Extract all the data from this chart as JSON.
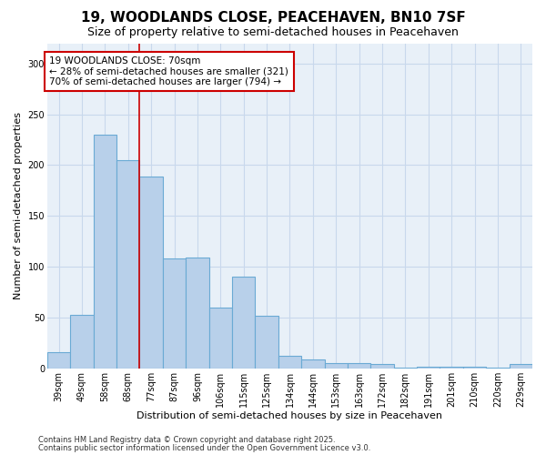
{
  "title_line1": "19, WOODLANDS CLOSE, PEACEHAVEN, BN10 7SF",
  "title_line2": "Size of property relative to semi-detached houses in Peacehaven",
  "xlabel": "Distribution of semi-detached houses by size in Peacehaven",
  "ylabel": "Number of semi-detached properties",
  "categories": [
    "39sqm",
    "49sqm",
    "58sqm",
    "68sqm",
    "77sqm",
    "87sqm",
    "96sqm",
    "106sqm",
    "115sqm",
    "125sqm",
    "134sqm",
    "144sqm",
    "153sqm",
    "163sqm",
    "172sqm",
    "182sqm",
    "191sqm",
    "201sqm",
    "210sqm",
    "220sqm",
    "229sqm"
  ],
  "values": [
    16,
    53,
    230,
    205,
    189,
    108,
    109,
    60,
    90,
    52,
    12,
    9,
    5,
    5,
    4,
    1,
    2,
    2,
    2,
    1,
    4
  ],
  "bar_color": "#b8d0ea",
  "bar_edge_color": "#6aaad4",
  "annotation_line1": "19 WOODLANDS CLOSE: 70sqm",
  "annotation_line2": "← 28% of semi-detached houses are smaller (321)",
  "annotation_line3": "70% of semi-detached houses are larger (794) →",
  "annotation_box_color": "#ffffff",
  "annotation_box_edge": "#cc0000",
  "redline_x": 3.5,
  "ylim": [
    0,
    320
  ],
  "yticks": [
    0,
    50,
    100,
    150,
    200,
    250,
    300
  ],
  "footnote1": "Contains HM Land Registry data © Crown copyright and database right 2025.",
  "footnote2": "Contains public sector information licensed under the Open Government Licence v3.0.",
  "grid_color": "#c8d8ec",
  "background_color": "#e8f0f8",
  "title1_fontsize": 11,
  "title2_fontsize": 9,
  "axis_label_fontsize": 8,
  "tick_fontsize": 7,
  "annotation_fontsize": 7.5,
  "footnote_fontsize": 6
}
